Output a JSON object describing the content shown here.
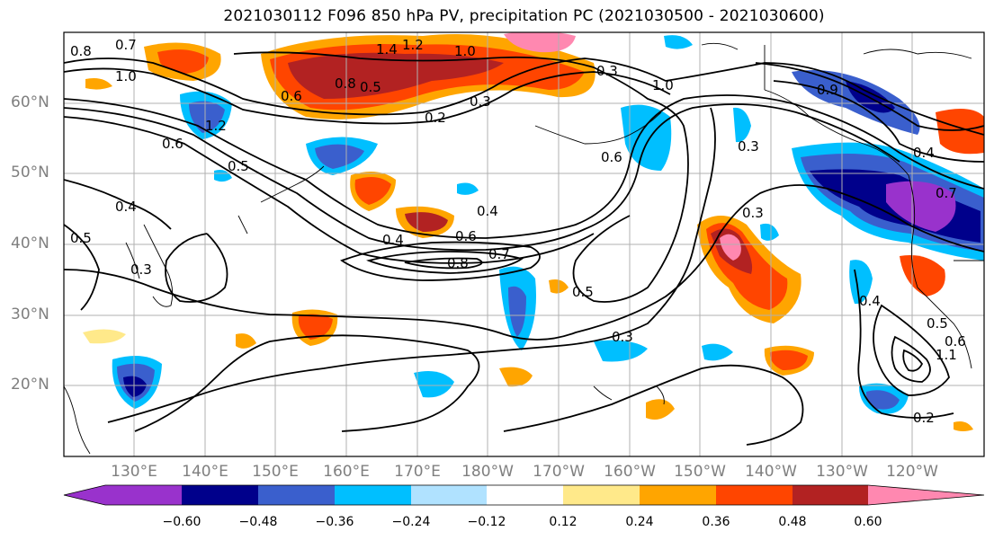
{
  "title": "2021030112 F096 850 hPa PV, precipitation PC (2021030500 - 2021030600)",
  "lat_labels": [
    "60°N",
    "50°N",
    "40°N",
    "30°N",
    "20°N"
  ],
  "lon_labels": [
    "130°E",
    "140°E",
    "150°E",
    "160°E",
    "170°E",
    "180°W",
    "170°W",
    "160°W",
    "150°W",
    "140°W",
    "130°W",
    "120°W"
  ],
  "colorbar": {
    "ticks": [
      "−0.60",
      "−0.48",
      "−0.36",
      "−0.24",
      "−0.12",
      "0.12",
      "0.24",
      "0.36",
      "0.48",
      "0.60"
    ],
    "colors": [
      "#9932cc",
      "#00008b",
      "#3a5fcd",
      "#00bfff",
      "#b0e2ff",
      "#ffffff",
      "#ffe98a",
      "#ffa500",
      "#ff4500",
      "#b22222",
      "#ff88b0"
    ]
  },
  "contour_labels": [
    "0.8",
    "0.7",
    "1.0",
    "1.4",
    "1.2",
    "1.0",
    "0.8",
    "0.5",
    "0.6",
    "0.2",
    "0.3",
    "0.4",
    "0.6",
    "0.7",
    "0.8",
    "0.4",
    "0.5",
    "0.6",
    "0.3",
    "0.3",
    "1.0",
    "0.9",
    "0.3",
    "0.3",
    "0.4",
    "0.5",
    "0.6",
    "0.2",
    "1.1",
    "0.5",
    "1.2",
    "0.4",
    "0.7",
    "0.6",
    "0.5",
    "0.4",
    "0.3"
  ]
}
